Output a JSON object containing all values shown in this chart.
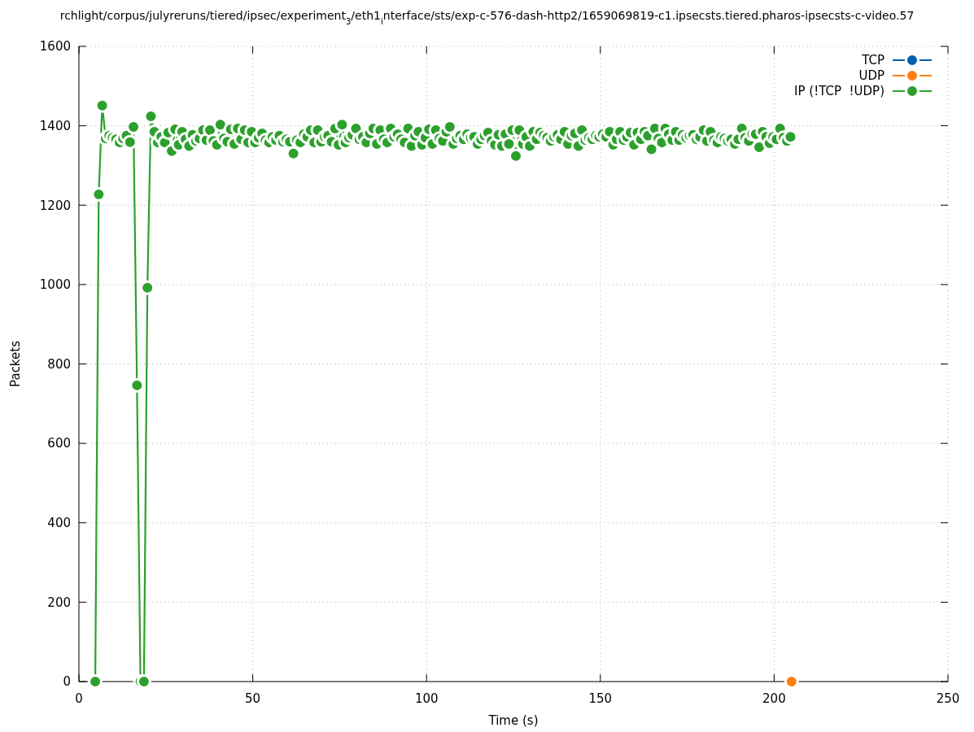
{
  "chart_data": {
    "type": "line",
    "title": "rchlight/corpus/julyreruns/tiered/ipsec/experiment$_{3}$/eth1$_{i}$nterface/sts/exp-c-576-dash-http2/1659069819-c1.ipsecsts.tiered.pharos-ipsecsts-c-video.57",
    "xlabel": "Time (s)",
    "ylabel": "Packets",
    "x": [
      4.7,
      5.7,
      6.7,
      7.7,
      8.7,
      9.7,
      10.7,
      11.7,
      12.7,
      13.7,
      14.7,
      15.7,
      16.7,
      17.7,
      18.7,
      19.7,
      20.7,
      21.7,
      22.7,
      23.7,
      24.7,
      25.7,
      26.7,
      27.7,
      28.7,
      29.7,
      30.7,
      31.7,
      32.7,
      33.7,
      34.7,
      35.7,
      36.7,
      37.7,
      38.7,
      39.7,
      40.7,
      41.7,
      42.7,
      43.7,
      44.7,
      45.7,
      46.7,
      47.7,
      48.7,
      49.7,
      50.7,
      51.7,
      52.7,
      53.7,
      54.7,
      55.7,
      56.7,
      57.7,
      58.7,
      59.7,
      60.7,
      61.7,
      62.7,
      63.7,
      64.7,
      65.7,
      66.7,
      67.7,
      68.7,
      69.7,
      70.7,
      71.7,
      72.7,
      73.7,
      74.7,
      75.7,
      76.7,
      77.7,
      78.7,
      79.7,
      80.7,
      81.7,
      82.7,
      83.7,
      84.7,
      85.7,
      86.7,
      87.7,
      88.7,
      89.7,
      90.7,
      91.7,
      92.7,
      93.7,
      94.7,
      95.7,
      96.7,
      97.7,
      98.7,
      99.7,
      100.7,
      101.7,
      102.7,
      103.7,
      104.7,
      105.7,
      106.7,
      107.7,
      108.7,
      109.7,
      110.7,
      111.7,
      112.7,
      113.7,
      114.7,
      115.7,
      116.7,
      117.7,
      118.7,
      119.7,
      120.7,
      121.7,
      122.7,
      123.7,
      124.7,
      125.7,
      126.7,
      127.7,
      128.7,
      129.7,
      130.7,
      131.7,
      132.7,
      133.7,
      134.7,
      135.7,
      136.7,
      137.7,
      138.7,
      139.7,
      140.7,
      141.7,
      142.7,
      143.7,
      144.7,
      145.7,
      146.7,
      147.7,
      148.7,
      149.7,
      150.7,
      151.7,
      152.7,
      153.7,
      154.7,
      155.7,
      156.7,
      157.7,
      158.7,
      159.7,
      160.7,
      161.7,
      162.7,
      163.7,
      164.7,
      165.7,
      166.7,
      167.7,
      168.7,
      169.7,
      170.7,
      171.7,
      172.7,
      173.7,
      174.7,
      175.7,
      176.7,
      177.7,
      178.7,
      179.7,
      180.7,
      181.7,
      182.7,
      183.7,
      184.7,
      185.7,
      186.7,
      187.7,
      188.7,
      189.7,
      190.7,
      191.7,
      192.7,
      193.7,
      194.7,
      195.7,
      196.7,
      197.7,
      198.7,
      199.7,
      200.7,
      201.7,
      202.7,
      203.7,
      204.7
    ],
    "series": [
      {
        "name": "TCP",
        "color": "#0060ad",
        "values": [
          null,
          null,
          null,
          null,
          null,
          null,
          null,
          null,
          null,
          null,
          null,
          null,
          null,
          null,
          null,
          null,
          null,
          null,
          null,
          null,
          null,
          null,
          null,
          null,
          null,
          null,
          null,
          null,
          null,
          null,
          null,
          null,
          null,
          null,
          null,
          null,
          null,
          null,
          null,
          null,
          null,
          null,
          null,
          null,
          null,
          null,
          null,
          null,
          null,
          null,
          null,
          null,
          null,
          null,
          null,
          null,
          null,
          null,
          null,
          null,
          null,
          null,
          null,
          null,
          null,
          null,
          null,
          null,
          null,
          null,
          null,
          null,
          null,
          null,
          null,
          null,
          null,
          null,
          null,
          null,
          null,
          null,
          null,
          null,
          null,
          null,
          null,
          null,
          null,
          null,
          null,
          null,
          null,
          null,
          null,
          null,
          null,
          null,
          null,
          null,
          null,
          null,
          null,
          null,
          null,
          null,
          null,
          null,
          null,
          null,
          null,
          null,
          null,
          null,
          null,
          null,
          null,
          null,
          null,
          null,
          null,
          null,
          null,
          null,
          null,
          null,
          null,
          null,
          null,
          null,
          null,
          null,
          null,
          null,
          null,
          null,
          null,
          null,
          null,
          null,
          null,
          null,
          null,
          null,
          null,
          null,
          null,
          null,
          null,
          null,
          null,
          null,
          null,
          null,
          null,
          null,
          null,
          null,
          null,
          null,
          null,
          null,
          null,
          null,
          null,
          null,
          null,
          null,
          null,
          null,
          null,
          null,
          null,
          null,
          null,
          null,
          null,
          null,
          null,
          null,
          null,
          null,
          null,
          null,
          null,
          null,
          null,
          null,
          null,
          null,
          null,
          null,
          null,
          null,
          null,
          null,
          null,
          null,
          null,
          null,
          null
        ]
      },
      {
        "name": "UDP",
        "color": "#ff7f0e",
        "x": [
          205
        ],
        "values": [
          0
        ]
      },
      {
        "name": "IP (!TCP  !UDP)",
        "color": "#2ca02c",
        "values": [
          0,
          1227,
          1451,
          1368,
          1375,
          1370,
          1366,
          1358,
          1368,
          1375,
          1359,
          1397,
          746,
          0,
          0,
          992,
          1424,
          1385,
          1358,
          1372,
          1358,
          1383,
          1336,
          1391,
          1352,
          1385,
          1366,
          1349,
          1377,
          1362,
          1368,
          1389,
          1364,
          1389,
          1362,
          1352,
          1403,
          1368,
          1360,
          1391,
          1354,
          1393,
          1366,
          1389,
          1358,
          1385,
          1358,
          1370,
          1381,
          1364,
          1358,
          1372,
          1364,
          1375,
          1360,
          1366,
          1360,
          1330,
          1364,
          1358,
          1379,
          1372,
          1389,
          1358,
          1389,
          1360,
          1372,
          1375,
          1360,
          1393,
          1352,
          1403,
          1358,
          1370,
          1377,
          1393,
          1366,
          1372,
          1358,
          1381,
          1393,
          1354,
          1389,
          1366,
          1358,
          1393,
          1372,
          1379,
          1366,
          1358,
          1393,
          1349,
          1375,
          1385,
          1352,
          1370,
          1391,
          1354,
          1389,
          1368,
          1362,
          1385,
          1397,
          1354,
          1368,
          1375,
          1366,
          1379,
          1370,
          1372,
          1354,
          1366,
          1375,
          1383,
          1362,
          1352,
          1377,
          1349,
          1379,
          1354,
          1389,
          1324,
          1389,
          1354,
          1372,
          1349,
          1385,
          1366,
          1383,
          1375,
          1370,
          1362,
          1372,
          1377,
          1366,
          1385,
          1354,
          1375,
          1381,
          1349,
          1389,
          1364,
          1370,
          1366,
          1375,
          1372,
          1379,
          1372,
          1385,
          1352,
          1366,
          1385,
          1364,
          1372,
          1383,
          1352,
          1383,
          1366,
          1385,
          1375,
          1341,
          1393,
          1368,
          1358,
          1393,
          1379,
          1364,
          1385,
          1364,
          1377,
          1370,
          1375,
          1377,
          1366,
          1372,
          1389,
          1362,
          1385,
          1364,
          1358,
          1372,
          1368,
          1362,
          1366,
          1354,
          1366,
          1393,
          1370,
          1362,
          1379,
          1379,
          1346,
          1385,
          1372,
          1356,
          1372,
          1366,
          1393,
          1370,
          1362,
          1372
        ]
      }
    ],
    "xlim": [
      0,
      250
    ],
    "xticks": [
      0,
      50,
      100,
      150,
      200,
      250
    ],
    "ylim": [
      0,
      1600
    ],
    "yticks": [
      0,
      200,
      400,
      600,
      800,
      1000,
      1200,
      1400,
      1600
    ],
    "grid": true,
    "legend": "top right",
    "marker": "circle"
  }
}
